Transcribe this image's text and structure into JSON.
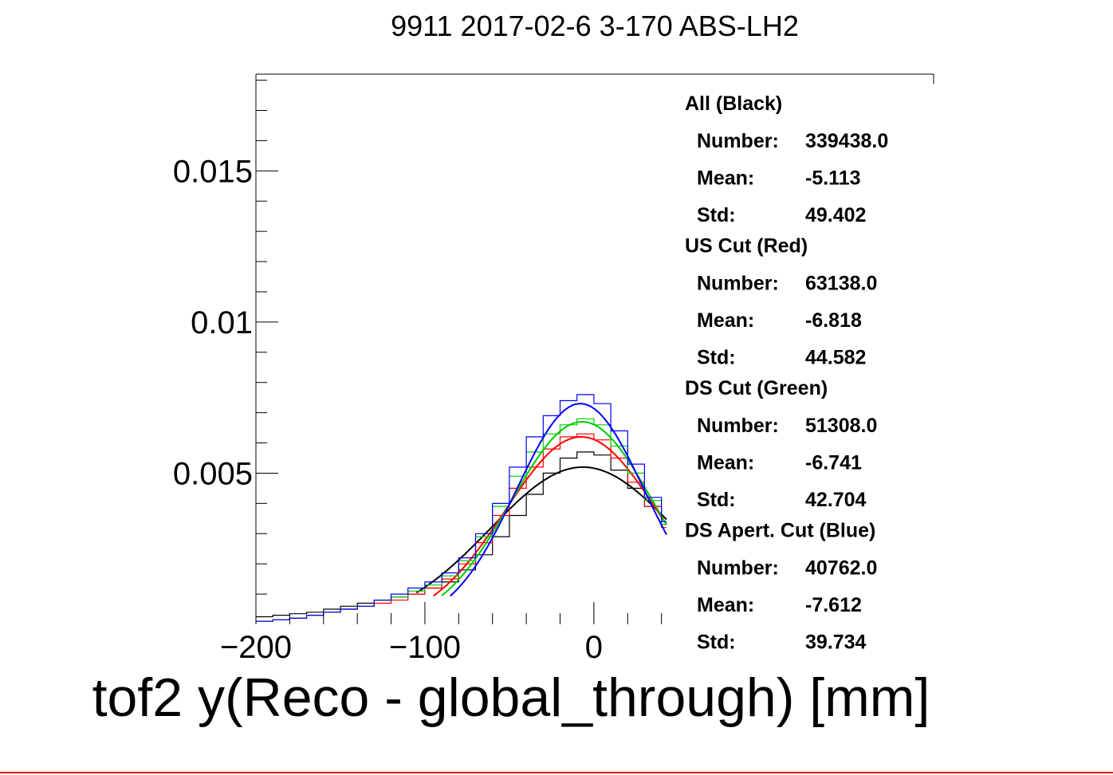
{
  "chart_data": {
    "type": "line",
    "title": "9911 2017-02-6 3-170 ABS-LH2",
    "xlabel": "tof2 y(Reco - global_through) [mm]",
    "ylabel": "",
    "xlim": [
      -200,
      43
    ],
    "ylim": [
      0,
      0.0182
    ],
    "x_ticks": [
      {
        "value": -200,
        "label": "−200"
      },
      {
        "value": -100,
        "label": "−100"
      },
      {
        "value": 0,
        "label": "0"
      }
    ],
    "y_ticks": [
      {
        "value": 0.005,
        "label": "0.005"
      },
      {
        "value": 0.01,
        "label": "0.01"
      },
      {
        "value": 0.015,
        "label": "0.015"
      }
    ],
    "grid": false,
    "legend_position": "right",
    "series": [
      {
        "name": "All (Black)",
        "color": "#000000",
        "histogram": {
          "x": [
            -200,
            -190,
            -180,
            -170,
            -160,
            -150,
            -140,
            -130,
            -120,
            -110,
            -100,
            -90,
            -80,
            -70,
            -60,
            -50,
            -40,
            -30,
            -20,
            -10,
            0,
            10,
            20,
            30,
            40,
            43
          ],
          "y": [
            0.00025,
            0.0003,
            0.00035,
            0.0004,
            0.0005,
            0.0006,
            0.0007,
            0.0008,
            0.0009,
            0.001,
            0.0012,
            0.0014,
            0.0018,
            0.0023,
            0.0029,
            0.0036,
            0.0043,
            0.005,
            0.0055,
            0.0057,
            0.0056,
            0.0051,
            0.0045,
            0.0039,
            0.0033,
            0.0031
          ]
        },
        "fit": {
          "x_start": -105,
          "x_end": 43,
          "amplitude": 0.0052,
          "mean": -6.5,
          "sigma": 55
        }
      },
      {
        "name": "US Cut (Red)",
        "color": "#ff0000",
        "histogram": {
          "x": [
            -200,
            -190,
            -180,
            -170,
            -160,
            -150,
            -140,
            -130,
            -120,
            -110,
            -100,
            -90,
            -80,
            -70,
            -60,
            -50,
            -40,
            -30,
            -20,
            -10,
            0,
            10,
            20,
            30,
            40,
            43
          ],
          "y": [
            0.0001,
            0.00015,
            0.0002,
            0.0003,
            0.0004,
            0.0005,
            0.0006,
            0.0007,
            0.0008,
            0.001,
            0.0012,
            0.0015,
            0.002,
            0.0027,
            0.0036,
            0.0045,
            0.0052,
            0.0058,
            0.0062,
            0.0063,
            0.0061,
            0.0055,
            0.0047,
            0.0039,
            0.0032,
            0.003
          ]
        },
        "fit": {
          "x_start": -95,
          "x_end": 43,
          "amplitude": 0.0062,
          "mean": -7.5,
          "sigma": 45
        }
      },
      {
        "name": "DS Cut (Green)",
        "color": "#00cc00",
        "histogram": {
          "x": [
            -200,
            -190,
            -180,
            -170,
            -160,
            -150,
            -140,
            -130,
            -120,
            -110,
            -100,
            -90,
            -80,
            -70,
            -60,
            -50,
            -40,
            -30,
            -20,
            -10,
            0,
            10,
            20,
            30,
            40,
            43
          ],
          "y": [
            0.0001,
            0.00015,
            0.0002,
            0.0003,
            0.0004,
            0.0005,
            0.0006,
            0.0008,
            0.0009,
            0.0011,
            0.0013,
            0.0016,
            0.0021,
            0.0029,
            0.0039,
            0.0049,
            0.0057,
            0.0063,
            0.0066,
            0.0068,
            0.0066,
            0.0059,
            0.005,
            0.0041,
            0.0033,
            0.003
          ]
        },
        "fit": {
          "x_start": -90,
          "x_end": 43,
          "amplitude": 0.0067,
          "mean": -7,
          "sigma": 42
        }
      },
      {
        "name": "DS Apert. Cut (Blue)",
        "color": "#0000ff",
        "histogram": {
          "x": [
            -200,
            -190,
            -180,
            -170,
            -160,
            -150,
            -140,
            -130,
            -120,
            -110,
            -100,
            -90,
            -80,
            -70,
            -60,
            -50,
            -40,
            -30,
            -20,
            -10,
            0,
            10,
            20,
            30,
            40,
            43
          ],
          "y": [
            0.0001,
            0.00015,
            0.0002,
            0.0003,
            0.0004,
            0.0005,
            0.0006,
            0.0008,
            0.001,
            0.0012,
            0.0014,
            0.0017,
            0.0022,
            0.003,
            0.004,
            0.0052,
            0.0062,
            0.0069,
            0.0074,
            0.0076,
            0.0073,
            0.0064,
            0.0053,
            0.0042,
            0.0034,
            0.0032
          ]
        },
        "fit": {
          "x_start": -85,
          "x_end": 43,
          "amplitude": 0.0073,
          "mean": -8,
          "sigma": 38
        }
      }
    ]
  },
  "stats": [
    {
      "title": "All (Black)",
      "rows": [
        {
          "label": "Number:",
          "value": "339438.0"
        },
        {
          "label": "Mean:",
          "value": "-5.113"
        },
        {
          "label": "Std:",
          "value": "49.402"
        }
      ]
    },
    {
      "title": "US Cut (Red)",
      "rows": [
        {
          "label": "Number:",
          "value": "63138.0"
        },
        {
          "label": "Mean:",
          "value": "-6.818"
        },
        {
          "label": "Std:",
          "value": "44.582"
        }
      ]
    },
    {
      "title": "DS Cut (Green)",
      "rows": [
        {
          "label": "Number:",
          "value": "51308.0"
        },
        {
          "label": "Mean:",
          "value": "-6.741"
        },
        {
          "label": "Std:",
          "value": "42.704"
        }
      ]
    },
    {
      "title": "DS Apert. Cut (Blue)",
      "rows": [
        {
          "label": "Number:",
          "value": "40762.0"
        },
        {
          "label": "Mean:",
          "value": "-7.612"
        },
        {
          "label": "Std:",
          "value": "39.734"
        }
      ]
    }
  ]
}
